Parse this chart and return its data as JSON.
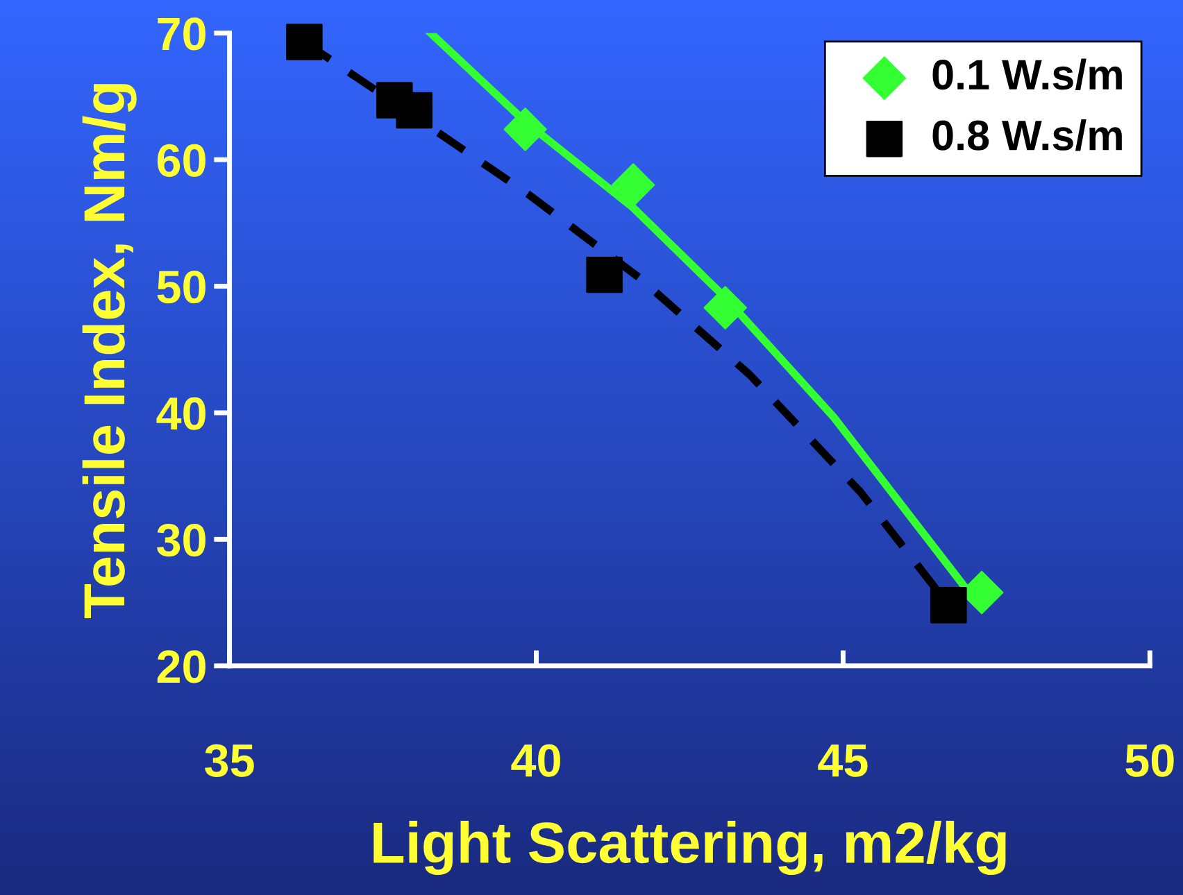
{
  "chart_data": {
    "type": "scatter",
    "xlabel": "Light Scattering, m2/kg",
    "ylabel": "Tensile Index, Nm/g",
    "xlim": [
      35,
      50
    ],
    "ylim": [
      20,
      70
    ],
    "xticks": [
      35,
      40,
      45,
      50
    ],
    "yticks": [
      20,
      30,
      40,
      50,
      60,
      70
    ],
    "grid": false,
    "legend": "top right",
    "series": [
      {
        "name": "0.1 W.s/m",
        "color": "#33ff33",
        "marker": "diamond",
        "x": [
          39.82,
          41.58,
          43.08,
          47.26
        ],
        "values": [
          62.4,
          58.0,
          48.3,
          25.8
        ]
      },
      {
        "name": "0.8 W.s/m",
        "color": "#000000",
        "marker": "square",
        "x": [
          36.22,
          37.69,
          38.01,
          41.11,
          46.72
        ],
        "values": [
          69.3,
          64.7,
          63.9,
          50.9,
          24.8
        ]
      },
      {
        "type": "line",
        "color": "#33ff33",
        "line_style": "solid",
        "marker": "none",
        "x": [
          38.28,
          39.82,
          41.58,
          43.08,
          44.84,
          47.1
        ],
        "values": [
          70,
          63,
          56.2,
          49.1,
          39.7,
          25.5
        ]
      },
      {
        "type": "line",
        "color": "#000000",
        "line_style": "dashed",
        "marker": "none",
        "x": [
          36.22,
          38.05,
          39.86,
          41.67,
          43.48,
          45.29,
          46.72
        ],
        "values": [
          69.3,
          63.3,
          57.3,
          50.7,
          43.0,
          33.7,
          24.8
        ]
      }
    ]
  }
}
